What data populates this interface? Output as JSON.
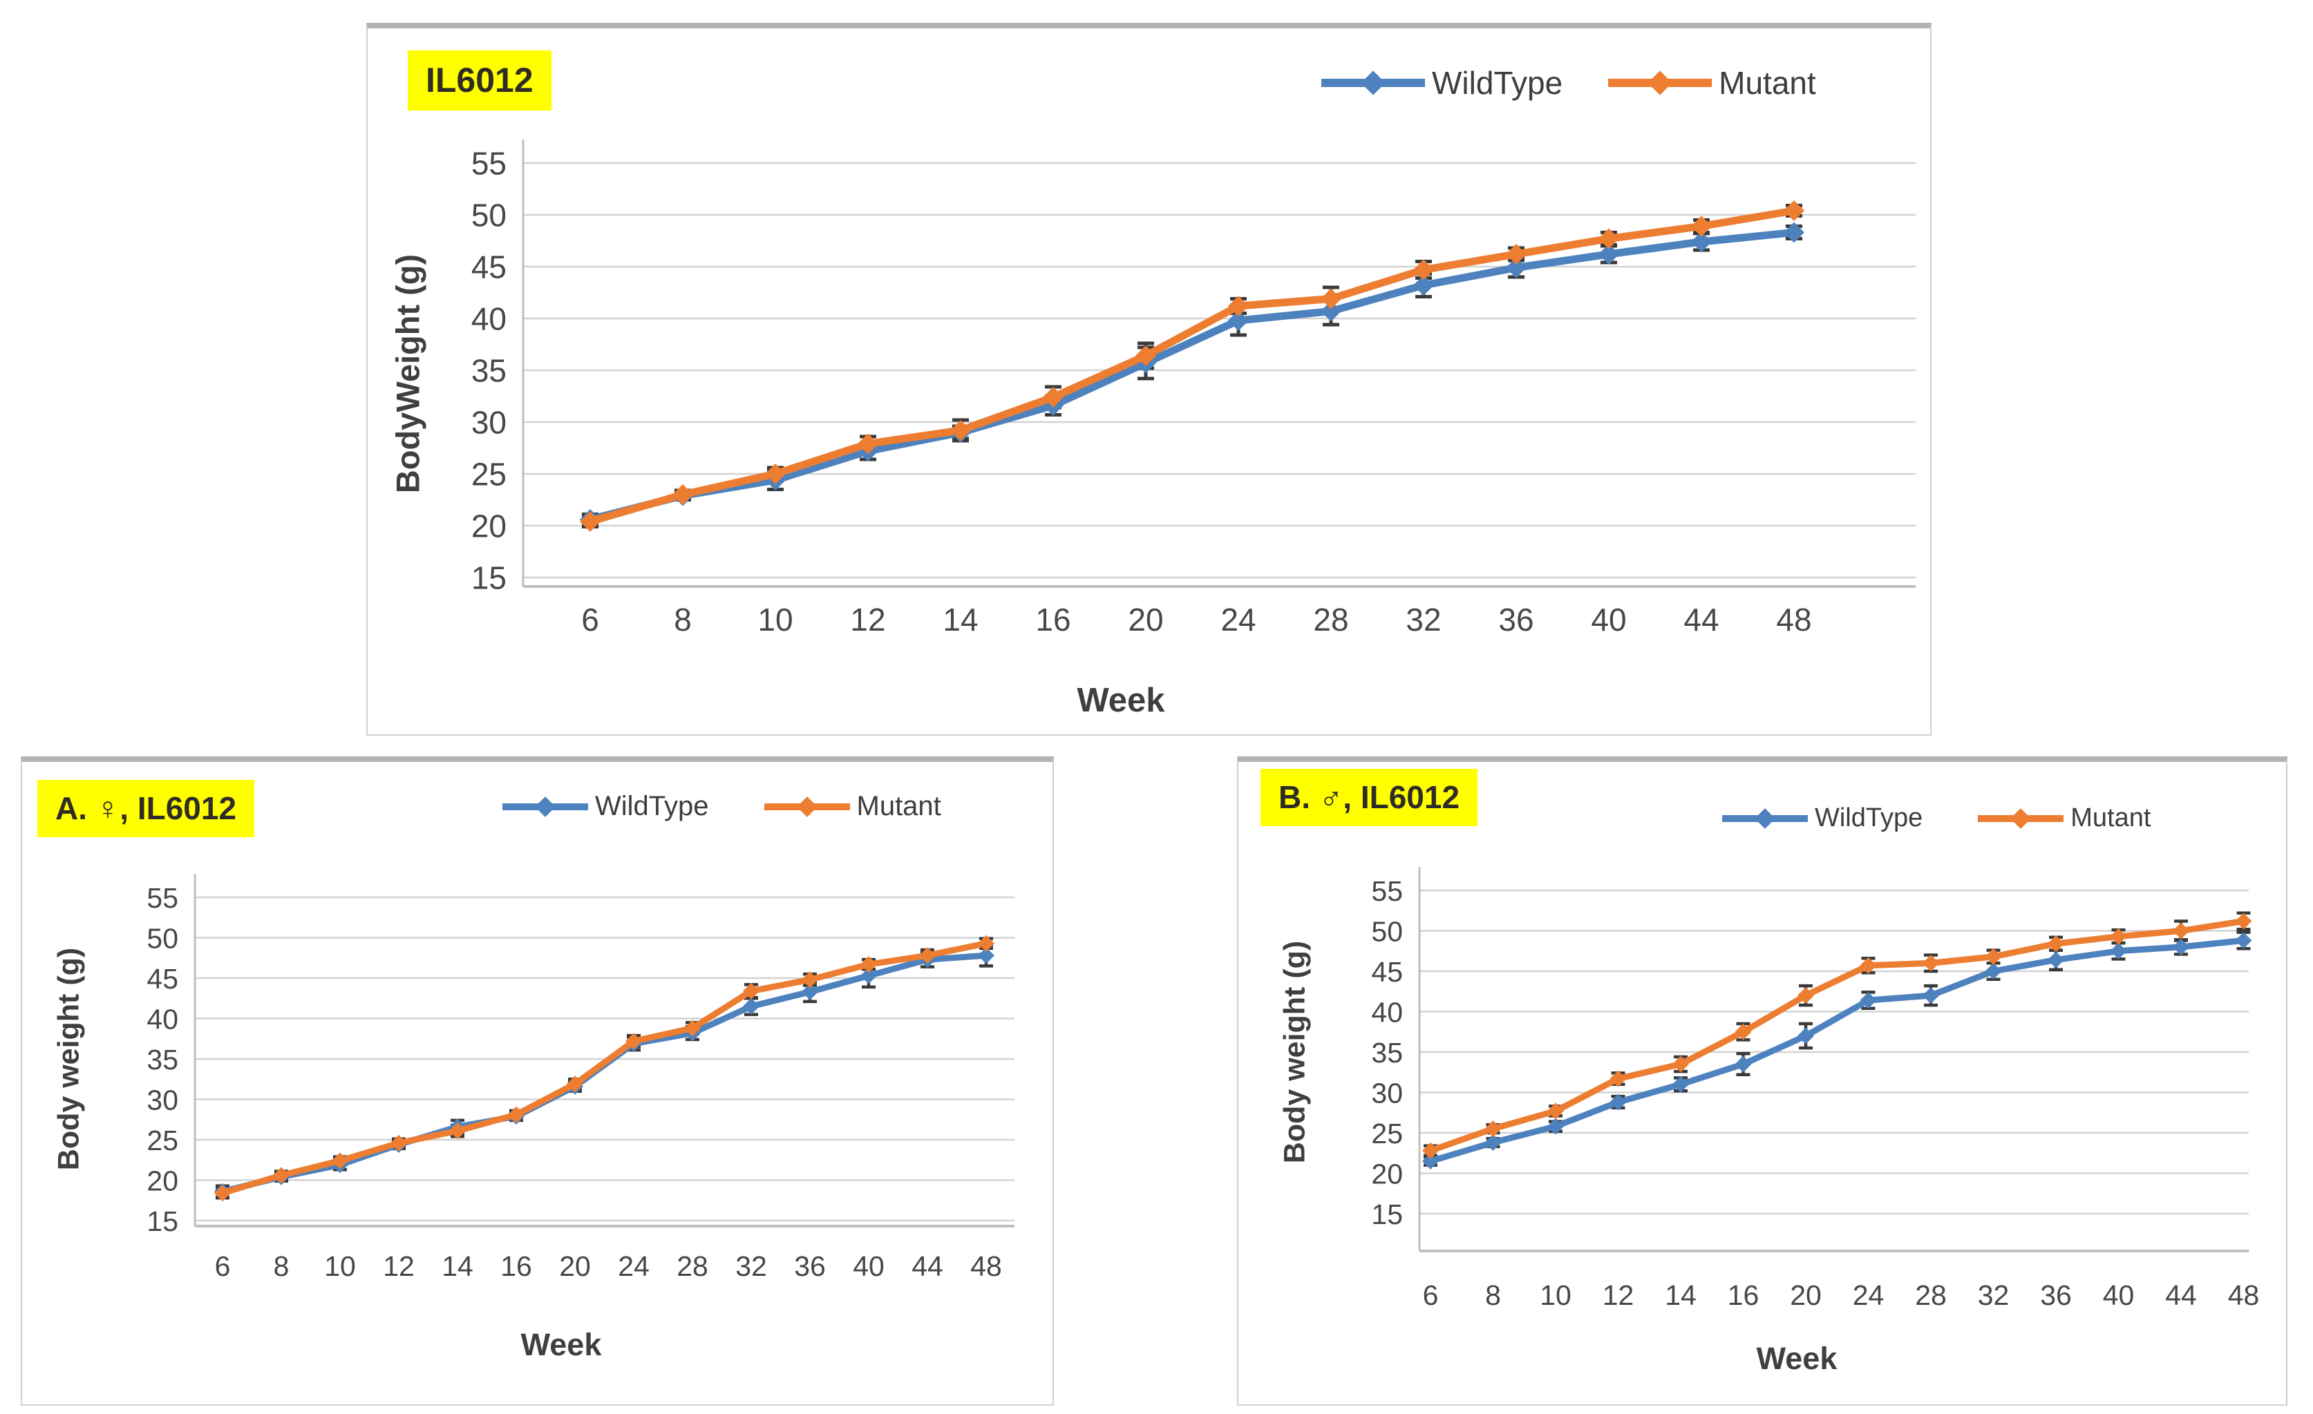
{
  "page": {
    "background": "#ffffff"
  },
  "colors": {
    "wildtype": "#4d82be",
    "mutant": "#ed7d31",
    "highlight": "#ffff00",
    "grid": "#d2d2d2",
    "axis": "#bfbfbf",
    "tick_text": "#474747",
    "error_bar": "#3a3a3a",
    "title_text": "#2f2b26",
    "panel_border": "#c9c9c9"
  },
  "legend": {
    "wildtype_label": "WildType",
    "mutant_label": "Mutant"
  },
  "chart_data": [
    {
      "type": "line",
      "panel": "combined",
      "title": "IL6012",
      "xlabel": "Week",
      "ylabel": "BodyWeight (g)",
      "x_categories": [
        "6",
        "8",
        "10",
        "12",
        "14",
        "16",
        "20",
        "24",
        "28",
        "32",
        "36",
        "40",
        "44",
        "48"
      ],
      "ylim": [
        15,
        55
      ],
      "yticks": [
        15,
        20,
        25,
        30,
        35,
        40,
        45,
        50,
        55
      ],
      "grid": true,
      "error_bars": true,
      "legend_position": "top-right",
      "series": [
        {
          "name": "WildType",
          "color_key": "wildtype",
          "values": [
            20.6,
            22.9,
            24.4,
            27.2,
            29.0,
            31.6,
            35.7,
            39.8,
            40.7,
            43.2,
            44.9,
            46.2,
            47.4,
            48.3
          ],
          "errors": [
            0.5,
            0.4,
            0.9,
            0.8,
            0.6,
            0.9,
            1.5,
            1.4,
            1.3,
            1.1,
            0.9,
            0.8,
            0.8,
            0.6
          ]
        },
        {
          "name": "Mutant",
          "color_key": "mutant",
          "values": [
            20.4,
            23.0,
            25.0,
            27.9,
            29.2,
            32.4,
            36.4,
            41.2,
            41.9,
            44.7,
            46.2,
            47.7,
            48.9,
            50.4
          ],
          "errors": [
            0.5,
            0.4,
            0.6,
            0.7,
            1.0,
            1.0,
            1.2,
            0.7,
            1.1,
            0.8,
            0.6,
            0.6,
            0.6,
            0.5
          ]
        }
      ]
    },
    {
      "type": "line",
      "panel": "female",
      "title": "A. ♀, IL6012",
      "xlabel": "Week",
      "ylabel": "Body weight (g)",
      "x_categories": [
        "6",
        "8",
        "10",
        "12",
        "14",
        "16",
        "20",
        "24",
        "28",
        "32",
        "36",
        "40",
        "44",
        "48"
      ],
      "ylim": [
        15,
        55
      ],
      "yticks": [
        15,
        20,
        25,
        30,
        35,
        40,
        45,
        50,
        55
      ],
      "grid": true,
      "error_bars": true,
      "legend_position": "top-center",
      "series": [
        {
          "name": "WildType",
          "color_key": "wildtype",
          "values": [
            18.6,
            20.4,
            21.9,
            24.4,
            26.6,
            27.9,
            31.6,
            36.9,
            38.2,
            41.5,
            43.3,
            45.3,
            47.3,
            47.8
          ],
          "errors": [
            0.7,
            0.5,
            0.6,
            0.5,
            0.8,
            0.5,
            0.6,
            0.8,
            0.8,
            1.0,
            1.2,
            1.4,
            0.9,
            1.3
          ]
        },
        {
          "name": "Mutant",
          "color_key": "mutant",
          "values": [
            18.4,
            20.6,
            22.4,
            24.6,
            26.1,
            28.1,
            31.9,
            37.2,
            38.8,
            43.4,
            44.8,
            46.7,
            47.8,
            49.3
          ],
          "errors": [
            0.6,
            0.5,
            0.5,
            0.5,
            0.7,
            0.5,
            0.6,
            0.7,
            0.7,
            0.8,
            0.7,
            0.6,
            0.7,
            0.6
          ]
        }
      ]
    },
    {
      "type": "line",
      "panel": "male",
      "title": "B. ♂, IL6012",
      "xlabel": "Week",
      "ylabel": "Body weight (g)",
      "x_categories": [
        "6",
        "8",
        "10",
        "12",
        "14",
        "16",
        "20",
        "24",
        "28",
        "32",
        "36",
        "40",
        "44",
        "48"
      ],
      "ylim": [
        15,
        55
      ],
      "yticks": [
        15,
        20,
        25,
        30,
        35,
        40,
        45,
        50,
        55
      ],
      "grid": true,
      "error_bars": true,
      "legend_position": "top-center",
      "series": [
        {
          "name": "WildType",
          "color_key": "wildtype",
          "values": [
            21.5,
            23.8,
            25.8,
            28.8,
            31.0,
            33.5,
            37.0,
            41.4,
            42.0,
            45.0,
            46.4,
            47.5,
            48.0,
            48.8
          ],
          "errors": [
            0.5,
            0.5,
            0.6,
            0.7,
            0.8,
            1.3,
            1.5,
            1.0,
            1.2,
            1.0,
            1.2,
            1.0,
            0.9,
            1.0
          ]
        },
        {
          "name": "Mutant",
          "color_key": "mutant",
          "values": [
            22.8,
            25.5,
            27.7,
            31.7,
            33.5,
            37.5,
            42.0,
            45.7,
            46.0,
            46.8,
            48.4,
            49.3,
            50.0,
            51.2
          ],
          "errors": [
            0.6,
            0.5,
            0.6,
            0.7,
            0.9,
            1.0,
            1.2,
            0.9,
            1.0,
            0.8,
            0.8,
            0.8,
            1.2,
            1.0
          ]
        }
      ]
    }
  ]
}
